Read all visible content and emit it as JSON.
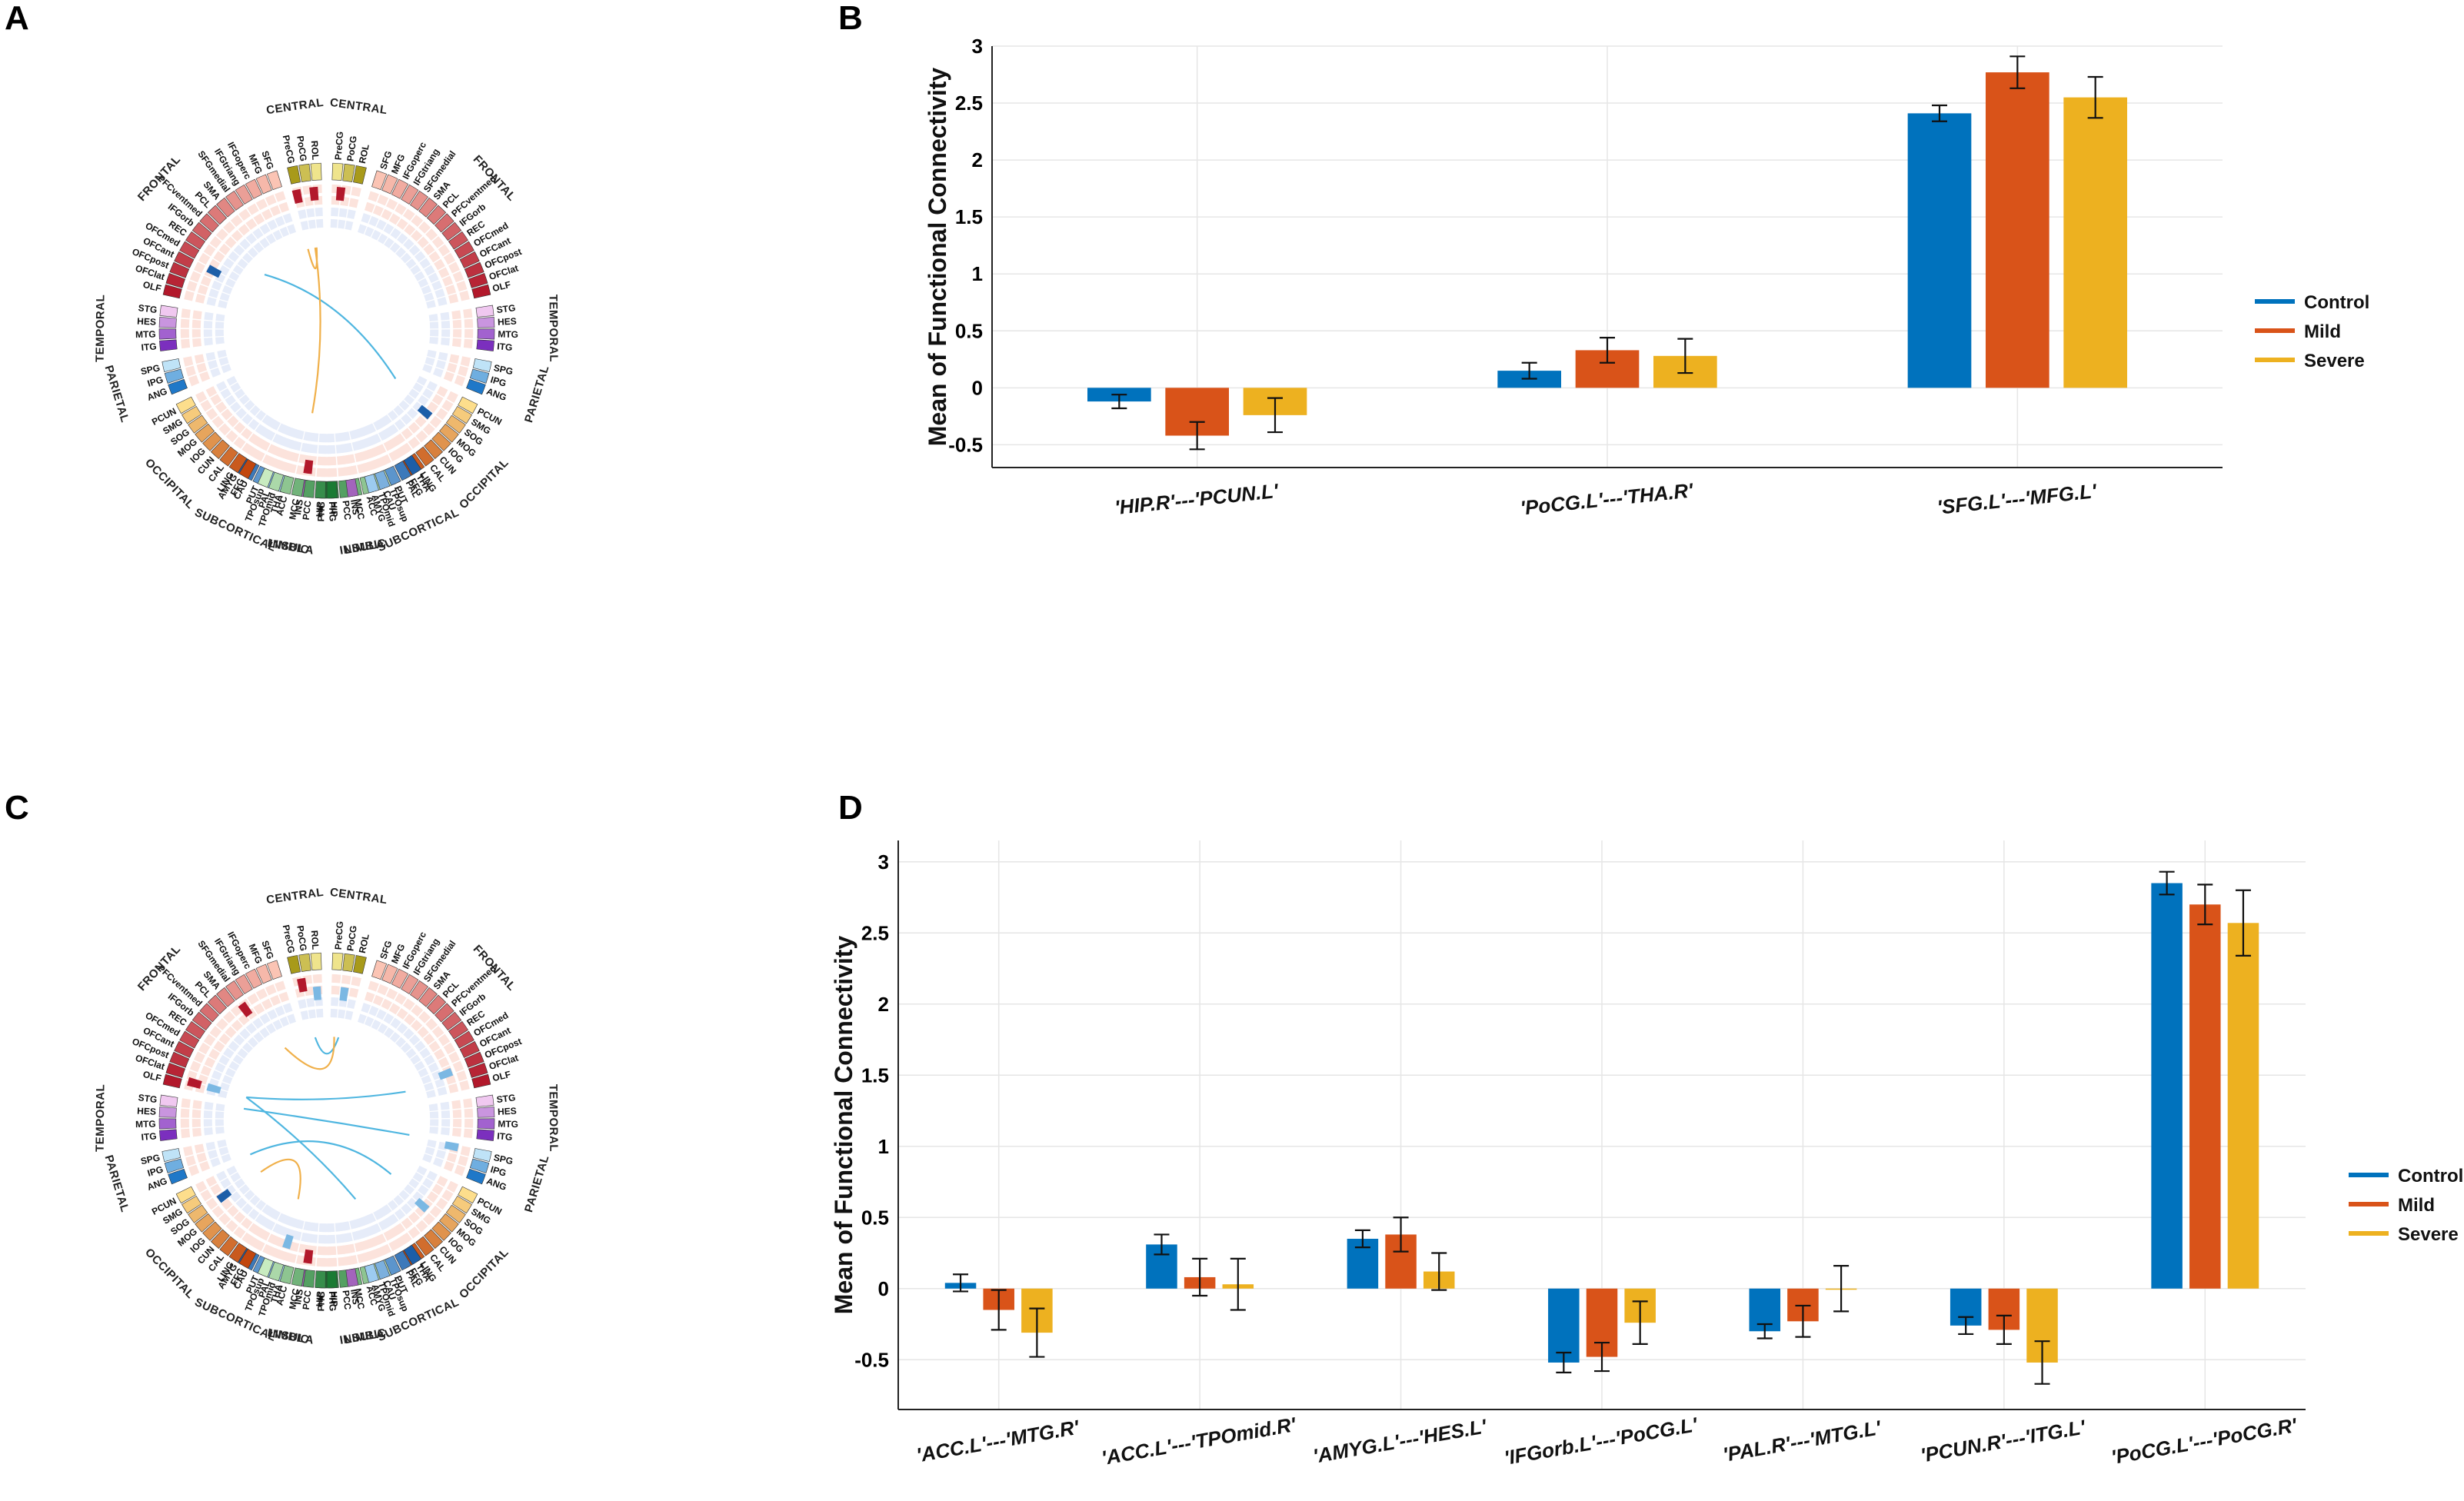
{
  "panels": {
    "A": {
      "letter": "A"
    },
    "B": {
      "letter": "B"
    },
    "C": {
      "letter": "C"
    },
    "D": {
      "letter": "D"
    }
  },
  "colors": {
    "control": "#0072BD",
    "mild": "#D95319",
    "severe": "#EDB120",
    "link_blue": "#4FB6E0",
    "link_orange": "#F0B04A"
  },
  "circos": {
    "region_labels": [
      "CENTRAL",
      "CENTRAL",
      "FRONTAL",
      "FRONTAL",
      "TEMPORAL",
      "TEMPORAL",
      "PARIETAL",
      "PARIETAL",
      "OCCIPITAL",
      "OCCIPITAL",
      "LIMBIC",
      "LIMBIC",
      "INSULA",
      "INSULA",
      "SUBCORTICAL",
      "SUBCORTICAL"
    ],
    "nodes_left": {
      "central": [
        "ROL",
        "PoCG",
        "PreCG"
      ],
      "frontal": [
        "SFG",
        "MFG",
        "IFGoperc",
        "IFGtriang",
        "SFGmedial",
        "SMA",
        "PCL",
        "PFCventmed",
        "IFGorb",
        "REC",
        "OFCmed",
        "OFCant",
        "OFCpost",
        "OFClat",
        "OLF"
      ],
      "temporal": [
        "STG",
        "HES",
        "MTG",
        "ITG"
      ],
      "parietal": [
        "SPG",
        "IPG",
        "ANG"
      ],
      "occipital": [
        "PCUN",
        "SMG",
        "SOG",
        "MOG",
        "IOG",
        "CUN",
        "CAL",
        "LING",
        "FFG"
      ],
      "limbic": [
        "TPOsup",
        "TPOmid",
        "ACC",
        "MCC",
        "PCC",
        "HIP",
        "PHG"
      ],
      "insula": [
        "INS"
      ],
      "subcortical": [
        "AMYG",
        "CAU",
        "PUT",
        "PAL",
        "THA"
      ]
    },
    "nodes_right": {
      "central": [
        "PreCG",
        "PoCG",
        "ROL"
      ],
      "frontal": [
        "SFG",
        "MFG",
        "IFGoperc",
        "IFGtriang",
        "SFGmedial",
        "SMA",
        "PCL",
        "PFCventmed",
        "IFGorb",
        "REC",
        "OFCmed",
        "OFCant",
        "OFCpost",
        "OFClat",
        "OLF"
      ],
      "temporal": [
        "STG",
        "HES",
        "MTG",
        "ITG"
      ],
      "parietal": [
        "SPG",
        "IPG",
        "ANG"
      ],
      "occipital": [
        "PCUN",
        "SMG",
        "SOG",
        "MOG",
        "IOG",
        "CUN",
        "CAL",
        "LING",
        "FFG"
      ],
      "limbic": [
        "TPOsup",
        "TPOmid",
        "ACC",
        "MCC",
        "PCC",
        "HIP",
        "PHG"
      ],
      "insula": [
        "INS"
      ],
      "subcortical": [
        "THA",
        "PAL",
        "PUT",
        "CAU",
        "AMYG"
      ]
    }
  },
  "chart_data": [
    {
      "id": "B",
      "type": "bar",
      "title": "",
      "ylabel": "Mean of Functional Connectivity",
      "xlabel": "",
      "ylim": [
        -0.7,
        3.0
      ],
      "yticks": [
        -0.5,
        0,
        0.5,
        1,
        1.5,
        2,
        2.5,
        3
      ],
      "ytick_labels": [
        "-0.5",
        "0",
        "0.5",
        "1",
        "1.5",
        "2",
        "2.5",
        "3"
      ],
      "grid": true,
      "legend_position": "right",
      "categories": [
        "'HIP.R'---'PCUN.L'",
        "'PoCG.L'---'THA.R'",
        "'SFG.L'---'MFG.L'"
      ],
      "series": [
        {
          "name": "Control",
          "values": [
            -0.12,
            0.15,
            2.41
          ],
          "errors": [
            0.06,
            0.07,
            0.07
          ]
        },
        {
          "name": "Mild",
          "values": [
            -0.42,
            0.33,
            2.77
          ],
          "errors": [
            0.12,
            0.11,
            0.14
          ]
        },
        {
          "name": "Severe",
          "values": [
            -0.24,
            0.28,
            2.55
          ],
          "errors": [
            0.15,
            0.15,
            0.18
          ]
        }
      ]
    },
    {
      "id": "D",
      "type": "bar",
      "title": "",
      "ylabel": "Mean of Functional Connectivity",
      "xlabel": "",
      "ylim": [
        -0.85,
        3.15
      ],
      "yticks": [
        -0.5,
        0,
        0.5,
        1,
        1.5,
        2,
        2.5,
        3
      ],
      "ytick_labels": [
        "-0.5",
        "0",
        "0.5",
        "1",
        "1.5",
        "2",
        "2.5",
        "3"
      ],
      "grid": true,
      "legend_position": "right",
      "categories": [
        "'ACC.L'---'MTG.R'",
        "'ACC.L'---'TPOmid.R'",
        "'AMYG.L'---'HES.L'",
        "'IFGorb.L'---'PoCG.L'",
        "'PAL.R'---'MTG.L'",
        "'PCUN.R'---'ITG.L'",
        "'PoCG.L'---'PoCG.R'"
      ],
      "series": [
        {
          "name": "Control",
          "values": [
            0.04,
            0.31,
            0.35,
            -0.52,
            -0.3,
            -0.26,
            2.85
          ],
          "errors": [
            0.06,
            0.07,
            0.06,
            0.07,
            0.05,
            0.06,
            0.08
          ]
        },
        {
          "name": "Mild",
          "values": [
            -0.15,
            0.08,
            0.38,
            -0.48,
            -0.23,
            -0.29,
            2.7
          ],
          "errors": [
            0.14,
            0.13,
            0.12,
            0.1,
            0.11,
            0.1,
            0.14
          ]
        },
        {
          "name": "Severe",
          "values": [
            -0.31,
            0.03,
            0.12,
            -0.24,
            0.0,
            -0.52,
            2.57
          ],
          "errors": [
            0.17,
            0.18,
            0.13,
            0.15,
            0.16,
            0.15,
            0.23
          ]
        }
      ]
    }
  ]
}
